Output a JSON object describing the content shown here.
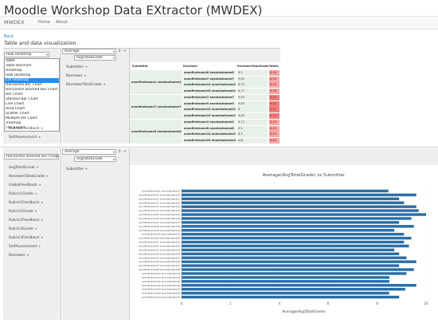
{
  "app": {
    "title": "Moodle Workshop Data EXtractor (MWDEX)"
  },
  "navbar": {
    "brand": "MWDEX",
    "links": [
      "Home",
      "About"
    ]
  },
  "back_label": "Back",
  "section_title": "Table and data visualization",
  "panel1": {
    "viz_select": "Row Heatmap",
    "agg_select": "Average",
    "agg_field": "AvgTotalGrade",
    "dropdown_options": [
      "Table",
      "Table Barchart",
      "Heatmap",
      "Row Heatmap",
      "Col Heatmap",
      "Horizontal Bar Chart",
      "Horizontal Stacked Bar Chart",
      "Bar Chart",
      "Stacked Bar Chart",
      "Line Chart",
      "Area Chart",
      "Scatter Chart",
      "Multiple Pie Chart",
      "Treemap",
      "TSV Export"
    ],
    "active_option_index": 4,
    "left_pills": [
      "Rubric1Feedback",
      "SelfAssessment"
    ],
    "row_pills": [
      "Submitter",
      "Reviewer",
      "ReviewerTotalGrade"
    ],
    "table": {
      "headers": [
        "Submitter",
        "Reviewer",
        "ReviewerTotalGrade",
        "Totals"
      ],
      "groups": [
        {
          "submitter": "anonfirstname1 anonlastname1",
          "rows": [
            {
              "reviewer": "anonfirstname6 anonlastname6",
              "grade": "8.5",
              "total": "8.46",
              "heat": "#f4a7a7"
            },
            {
              "reviewer": "anonfirstname7 anonlastname7",
              "grade": "9.83",
              "total": "8.46",
              "heat": "#f4a7a7"
            },
            {
              "reviewer": "anonfirstname14 anonlastname14",
              "grade": "8.33",
              "total": "8.46",
              "heat": "#f4a7a7"
            },
            {
              "reviewer": "anonfirstname18 anonlastname18",
              "grade": "8.17",
              "total": "8.46",
              "heat": "#f4a7a7"
            }
          ]
        },
        {
          "submitter": "anonfirstname7 anonlastname7",
          "rows": [
            {
              "reviewer": "anonfirstname7 anonlastname7",
              "grade": "9.83",
              "total": "9.15",
              "heat": "#ef7f7f"
            },
            {
              "reviewer": "anonfirstname9 anonlastname9",
              "grade": "9.83",
              "total": "9.15",
              "heat": "#ef7f7f"
            },
            {
              "reviewer": "anonfirstname15 anonlastname15",
              "grade": "8",
              "total": "9.15",
              "heat": "#ef7f7f"
            },
            {
              "reviewer": "anonfirstname19 anonlastname19",
              "grade": "9.83",
              "total": "9.15",
              "heat": "#ef7f7f"
            }
          ]
        },
        {
          "submitter": "anonfirstname8 anonlastname8",
          "rows": [
            {
              "reviewer": "anonfirstname2 anonlastname2",
              "grade": "8.17",
              "total": "8.49",
              "heat": "#f4a7a7"
            },
            {
              "reviewer": "anonfirstname8 anonlastname8",
              "grade": "9.5",
              "total": "8.49",
              "heat": "#f4a7a7"
            },
            {
              "reviewer": "anonfirstname14 anonlastname14",
              "grade": "8.5",
              "total": "8.49",
              "heat": "#f4a7a7"
            },
            {
              "reviewer": "anonfirstname24 anonlastname24",
              "grade": "null",
              "total": "8.49",
              "heat": "#f4a7a7"
            }
          ]
        }
      ]
    }
  },
  "panel2": {
    "viz_select": "Horizontal Stacked Bar Chart",
    "agg_select": "Average",
    "agg_field": "AvgTotalGrade",
    "left_pills": [
      "AvgTotalGrade",
      "ReviewerTotalGrade",
      "GlobalFeedback",
      "Rubric1Grade",
      "Rubric1Feedback",
      "Rubric2Grade",
      "Rubric2Feedback",
      "Rubric3Grade",
      "Rubric3Feedback",
      "SelfAssessment",
      "Reviewer"
    ],
    "row_pills": [
      "Submitter"
    ]
  },
  "chart_data": {
    "type": "bar",
    "orientation": "horizontal",
    "title": "Average(AvgTotalGrade) vs Submitter",
    "xlabel": "Average(AvgTotalGrade)",
    "ylabel": "",
    "xlim": [
      0,
      10
    ],
    "xticks": [
      "0",
      "2",
      "4",
      "6",
      "8",
      "10"
    ],
    "bar_color": "#2a6ea6",
    "categories": [
      "anonfirstname1 anonlastname1",
      "anonfirstname10 anonlastname10",
      "anonfirstname11 anonlastname11",
      "anonfirstname12 anonlastname12",
      "anonfirstname13 anonlastname13",
      "anonfirstname14 anonlastname14",
      "anonfirstname15 anonlastname15",
      "anonfirstname16 anonlastname16",
      "anonfirstname17 anonlastname17",
      "anonfirstname18 anonlastname18",
      "anonfirstname19 anonlastname19",
      "anonfirstname2 anonlastname2",
      "anonfirstname20 anonlastname20",
      "anonfirstname21 anonlastname21",
      "anonfirstname22 anonlastname22",
      "anonfirstname23 anonlastname23",
      "anonfirstname24 anonlastname24",
      "anonfirstname25 anonlastname25",
      "anonfirstname26 anonlastname26",
      "anonfirstname27 anonlastname27",
      "anonfirstname28 anonlastname28",
      "anonfirstname3 anonlastname3",
      "anonfirstname4 anonlastname4",
      "anonfirstname5 anonlastname5",
      "anonfirstname6 anonlastname6",
      "anonfirstname7 anonlastname7",
      "anonfirstname8 anonlastname8",
      "anonfirstname9 anonlastname9"
    ],
    "values": [
      8.46,
      9.6,
      8.9,
      9.1,
      9.6,
      9.7,
      10.0,
      9.4,
      8.9,
      9.5,
      8.7,
      9.1,
      9.4,
      9.1,
      9.3,
      8.7,
      8.9,
      9.2,
      9.6,
      8.9,
      9.5,
      9.2,
      8.5,
      8.5,
      9.6,
      9.15,
      8.49,
      8.9
    ]
  }
}
